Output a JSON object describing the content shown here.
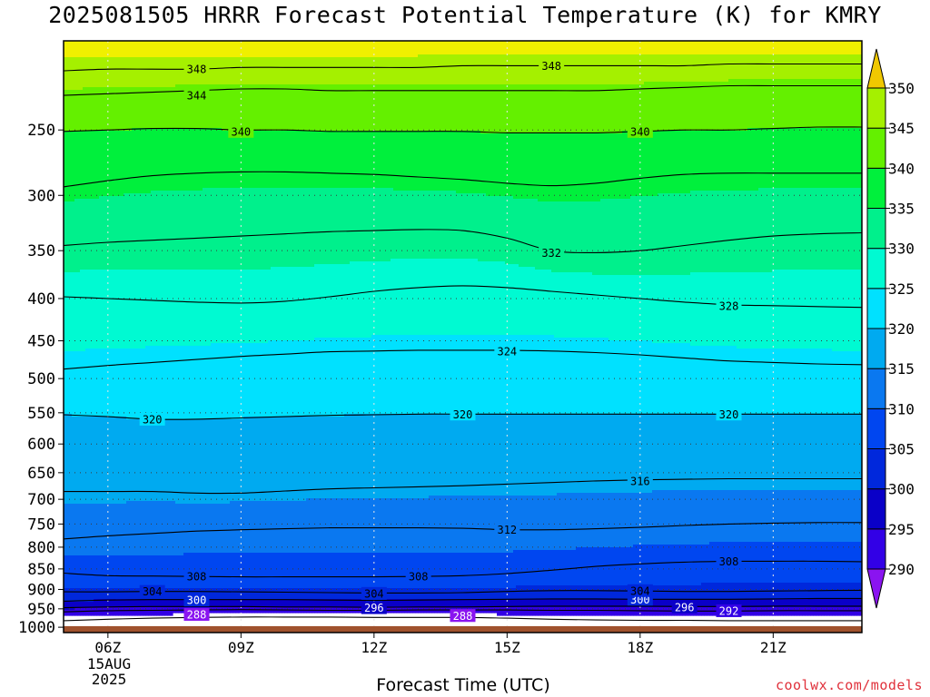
{
  "chart_data": {
    "type": "heatmap",
    "title": "2025081505 HRRR Forecast Potential Temperature (K) for KMRY",
    "xlabel": "Forecast Time (UTC)",
    "ylabel": "",
    "x_ticks": [
      "06Z",
      "09Z",
      "12Z",
      "15Z",
      "18Z",
      "21Z"
    ],
    "x_range": [
      5,
      23
    ],
    "x_start_date": [
      "15AUG",
      "2025"
    ],
    "y_axis": "pressure (log scale, inverted)",
    "y_ticks": [
      250,
      300,
      350,
      400,
      450,
      500,
      550,
      600,
      650,
      700,
      750,
      800,
      850,
      900,
      950,
      1000
    ],
    "y_range": [
      195,
      1015
    ],
    "grid": "dotted",
    "colorbar": {
      "levels": [
        290,
        295,
        300,
        305,
        310,
        315,
        320,
        325,
        330,
        335,
        340,
        345,
        350
      ],
      "tick_labels": [
        "290",
        "295",
        "300",
        "305",
        "310",
        "315",
        "320",
        "325",
        "330",
        "335",
        "340",
        "345",
        "350"
      ],
      "colors": [
        "#8a14f0",
        "#3200e6",
        "#0a00c8",
        "#0028dc",
        "#0046f0",
        "#0a78f0",
        "#00aaf0",
        "#00e1ff",
        "#00fad2",
        "#00f08c",
        "#00f03c",
        "#64f000",
        "#a5f000",
        "#f0f000",
        "#f0c800"
      ]
    },
    "ground_color": "#a0522d",
    "ground_level_hpa": 997,
    "contours": [
      {
        "value": 288,
        "label": "288",
        "label_at": [
          [
            8,
            965
          ],
          [
            14,
            968
          ]
        ],
        "p": [
          982,
          978,
          975,
          973,
          972,
          972,
          972,
          973,
          973,
          973,
          975,
          978,
          980,
          981,
          981,
          982,
          982,
          982,
          982
        ]
      },
      {
        "value": 292,
        "label": "292",
        "label_at": [
          [
            20,
            955
          ]
        ],
        "p": [
          958,
          955,
          954,
          953,
          952,
          953,
          954,
          954,
          953,
          953,
          953,
          954,
          954,
          955,
          956,
          956,
          955,
          955,
          955
        ]
      },
      {
        "value": 296,
        "label": "296",
        "label_at": [
          [
            12,
            947
          ],
          [
            19,
            945
          ]
        ],
        "p": [
          947,
          945,
          944,
          944,
          944,
          945,
          945,
          946,
          945,
          945,
          944,
          943,
          943,
          943,
          944,
          944,
          943,
          943,
          943
        ]
      },
      {
        "value": 300,
        "label": "300",
        "label_at": [
          [
            8,
            927
          ],
          [
            18,
            925
          ]
        ],
        "p": [
          930,
          927,
          926,
          926,
          926,
          926,
          927,
          928,
          927,
          926,
          925,
          924,
          924,
          925,
          925,
          925,
          924,
          923,
          923
        ]
      },
      {
        "value": 304,
        "label": "304",
        "label_at": [
          [
            7,
            905
          ],
          [
            12,
            910
          ],
          [
            18,
            903
          ]
        ],
        "p": [
          906,
          906,
          905,
          905,
          906,
          907,
          908,
          909,
          909,
          908,
          905,
          903,
          903,
          904,
          905,
          905,
          904,
          903,
          902
        ]
      },
      {
        "value": 308,
        "label": "308",
        "label_at": [
          [
            8,
            868
          ],
          [
            13,
            868
          ],
          [
            20,
            832
          ]
        ],
        "p": [
          860,
          866,
          867,
          868,
          869,
          869,
          869,
          869,
          868,
          866,
          861,
          853,
          844,
          838,
          834,
          832,
          832,
          832,
          833
        ]
      },
      {
        "value": 312,
        "label": "312",
        "label_at": [
          [
            15,
            762
          ]
        ],
        "p": [
          782,
          775,
          770,
          765,
          762,
          760,
          758,
          758,
          758,
          759,
          762,
          762,
          760,
          757,
          753,
          750,
          748,
          747,
          747
        ]
      },
      {
        "value": 316,
        "label": "316",
        "label_at": [
          [
            18,
            665
          ]
        ],
        "p": [
          685,
          685,
          685,
          688,
          688,
          684,
          680,
          678,
          676,
          674,
          671,
          668,
          665,
          663,
          662,
          661,
          661,
          661,
          661
        ]
      },
      {
        "value": 320,
        "label": "320",
        "label_at": [
          [
            7,
            560
          ],
          [
            14,
            552
          ],
          [
            20,
            552
          ]
        ],
        "p": [
          553,
          556,
          560,
          560,
          558,
          556,
          554,
          553,
          552,
          552,
          552,
          552,
          552,
          552,
          552,
          552,
          552,
          552,
          552
        ]
      },
      {
        "value": 324,
        "label": "324",
        "label_at": [
          [
            15,
            463
          ]
        ],
        "p": [
          487,
          482,
          478,
          474,
          470,
          467,
          464,
          463,
          462,
          462,
          462,
          463,
          465,
          468,
          472,
          476,
          478,
          480,
          481
        ]
      },
      {
        "value": 328,
        "label": "328",
        "label_at": [
          [
            20,
            408
          ]
        ],
        "p": [
          398,
          400,
          402,
          404,
          405,
          403,
          398,
          392,
          388,
          386,
          388,
          392,
          396,
          400,
          404,
          407,
          408,
          409,
          410
        ]
      },
      {
        "value": 332,
        "label": "332",
        "label_at": [
          [
            16,
            352
          ]
        ],
        "p": [
          345,
          342,
          340,
          338,
          336,
          334,
          332,
          331,
          330,
          331,
          338,
          350,
          352,
          350,
          345,
          340,
          336,
          334,
          333
        ]
      },
      {
        "value": 336,
        "label": "336",
        "label_at": [],
        "p": [
          293,
          288,
          284,
          282,
          281,
          281,
          282,
          283,
          285,
          287,
          290,
          292,
          290,
          286,
          283,
          282,
          282,
          282,
          282
        ]
      },
      {
        "value": 340,
        "label": "340",
        "label_at": [
          [
            9,
            251
          ],
          [
            18,
            251
          ]
        ],
        "p": [
          251,
          250,
          249,
          249,
          250,
          250,
          251,
          251,
          251,
          251,
          252,
          252,
          252,
          251,
          250,
          250,
          249,
          248,
          248
        ]
      },
      {
        "value": 344,
        "label": "344",
        "label_at": [
          [
            8,
            227
          ]
        ],
        "p": [
          227,
          226,
          225,
          224,
          223,
          223,
          224,
          224,
          224,
          224,
          224,
          224,
          224,
          223,
          222,
          221,
          221,
          221,
          221
        ]
      },
      {
        "value": 348,
        "label": "348",
        "label_at": [
          [
            8,
            211
          ],
          [
            16,
            209
          ]
        ],
        "p": [
          212,
          211,
          211,
          211,
          210,
          210,
          210,
          210,
          210,
          209,
          209,
          209,
          209,
          209,
          209,
          208,
          208,
          208,
          208
        ]
      }
    ]
  }
}
